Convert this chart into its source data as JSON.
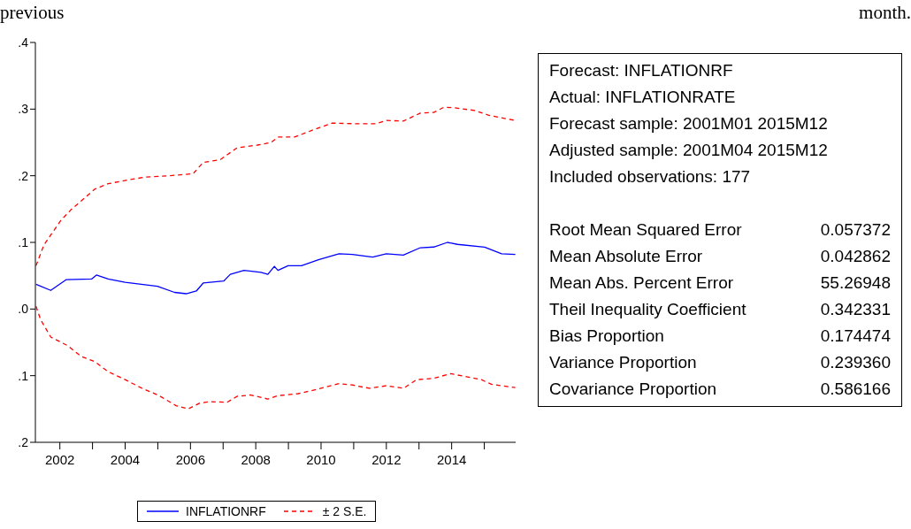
{
  "chart_data": [
    {
      "type": "line",
      "annotations": [
        "previous month."
      ],
      "xlim": [
        2001.25,
        2015.96
      ],
      "xticks": [
        {
          "value": 2002,
          "label": "2002"
        },
        {
          "value": 2003,
          "label": null
        },
        {
          "value": 2004,
          "label": "2004"
        },
        {
          "value": 2005,
          "label": null
        },
        {
          "value": 2006,
          "label": "2006"
        },
        {
          "value": 2007,
          "label": null
        },
        {
          "value": 2008,
          "label": "2008"
        },
        {
          "value": 2009,
          "label": null
        },
        {
          "value": 2010,
          "label": "2010"
        },
        {
          "value": 2011,
          "label": null
        },
        {
          "value": 2012,
          "label": "2012"
        },
        {
          "value": 2013,
          "label": null
        },
        {
          "value": 2014,
          "label": "2014"
        },
        {
          "value": 2015,
          "label": null
        }
      ],
      "ylim": [
        -0.2,
        0.4
      ],
      "yticks": [
        {
          "value": 0.4,
          "label": ".4"
        },
        {
          "value": 0.3,
          "label": ".3"
        },
        {
          "value": 0.2,
          "label": ".2"
        },
        {
          "value": 0.1,
          "label": ".1"
        },
        {
          "value": 0,
          "label": ".0"
        },
        {
          "value": -0.1,
          "label": ".1"
        },
        {
          "value": -0.2,
          "label": ".2"
        }
      ],
      "legend": "bottom",
      "series": [
        {
          "name": "INFLATIONRF",
          "color": "#0000ff",
          "line_style": "solid",
          "x": [
            2001.27,
            2001.72,
            2002.19,
            2002.97,
            2003.12,
            2003.48,
            2004.0,
            2004.99,
            2005.51,
            2005.87,
            2006.18,
            2006.39,
            2007.02,
            2007.22,
            2007.64,
            2008.16,
            2008.37,
            2008.57,
            2008.68,
            2008.99,
            2009.4,
            2009.92,
            2010.55,
            2010.96,
            2011.58,
            2012.0,
            2012.52,
            2013.04,
            2013.45,
            2013.87,
            2014.18,
            2015.01,
            2015.53,
            2015.95
          ],
          "values": [
            0.037,
            0.028,
            0.044,
            0.045,
            0.051,
            0.045,
            0.04,
            0.034,
            0.025,
            0.023,
            0.027,
            0.039,
            0.042,
            0.052,
            0.058,
            0.055,
            0.052,
            0.064,
            0.058,
            0.065,
            0.065,
            0.074,
            0.083,
            0.082,
            0.078,
            0.083,
            0.081,
            0.092,
            0.093,
            0.1,
            0.097,
            0.093,
            0.083,
            0.082
          ]
        },
        {
          "name": "± 2 S.E.",
          "color": "#ff0000",
          "line_style": "dashed",
          "x": [
            2001.27,
            2001.51,
            2001.72,
            2002.03,
            2002.34,
            2002.65,
            2003.07,
            2003.48,
            2004.11,
            2004.63,
            2005.35,
            2006.08,
            2006.39,
            2006.91,
            2007.43,
            2008.05,
            2008.47,
            2008.68,
            2009.19,
            2009.82,
            2010.34,
            2011.07,
            2011.69,
            2012.0,
            2012.52,
            2013.04,
            2013.45,
            2013.77,
            2014.08,
            2014.7,
            2015.12,
            2015.43,
            2015.95
          ],
          "values": [
            0.065,
            0.096,
            0.111,
            0.133,
            0.149,
            0.162,
            0.18,
            0.188,
            0.194,
            0.198,
            0.2,
            0.203,
            0.22,
            0.224,
            0.242,
            0.246,
            0.25,
            0.258,
            0.258,
            0.27,
            0.279,
            0.278,
            0.278,
            0.283,
            0.282,
            0.294,
            0.295,
            0.303,
            0.302,
            0.298,
            0.291,
            0.288,
            0.283
          ]
        },
        {
          "color": "#ff0000",
          "line_style": "dashed",
          "x": [
            2001.27,
            2001.41,
            2001.72,
            2002.24,
            2002.65,
            2003.07,
            2003.48,
            2004.0,
            2004.52,
            2005.04,
            2005.56,
            2005.93,
            2006.29,
            2006.6,
            2007.12,
            2007.43,
            2007.85,
            2008.37,
            2008.68,
            2009.3,
            2009.92,
            2010.55,
            2010.96,
            2011.48,
            2012.0,
            2012.52,
            2012.93,
            2013.45,
            2013.97,
            2014.49,
            2014.91,
            2015.22,
            2015.95
          ],
          "values": [
            0.004,
            -0.016,
            -0.042,
            -0.055,
            -0.071,
            -0.079,
            -0.094,
            -0.106,
            -0.119,
            -0.13,
            -0.145,
            -0.15,
            -0.141,
            -0.139,
            -0.14,
            -0.131,
            -0.129,
            -0.135,
            -0.13,
            -0.127,
            -0.12,
            -0.112,
            -0.114,
            -0.119,
            -0.115,
            -0.119,
            -0.106,
            -0.104,
            -0.097,
            -0.102,
            -0.106,
            -0.113,
            -0.118
          ]
        }
      ]
    },
    {
      "type": "other",
      "annotations": [
        "Forecast: INFLATIONRF",
        "Actual: INFLATIONRATE",
        "Forecast sample: 2001M01 2015M12",
        "Adjusted sample: 2001M04 2015M12",
        "Included observations: 177"
      ],
      "categories": [
        "Root Mean Squared Error",
        "Mean Absolute Error",
        "Mean Abs. Percent Error",
        "Theil Inequality Coefficient",
        "Bias Proportion",
        "Variance Proportion",
        "Covariance Proportion"
      ],
      "value_labels": [
        "0.057372",
        "0.042862",
        "55.26948",
        "0.342331",
        "0.174474",
        "0.239360",
        "0.586166"
      ]
    }
  ]
}
